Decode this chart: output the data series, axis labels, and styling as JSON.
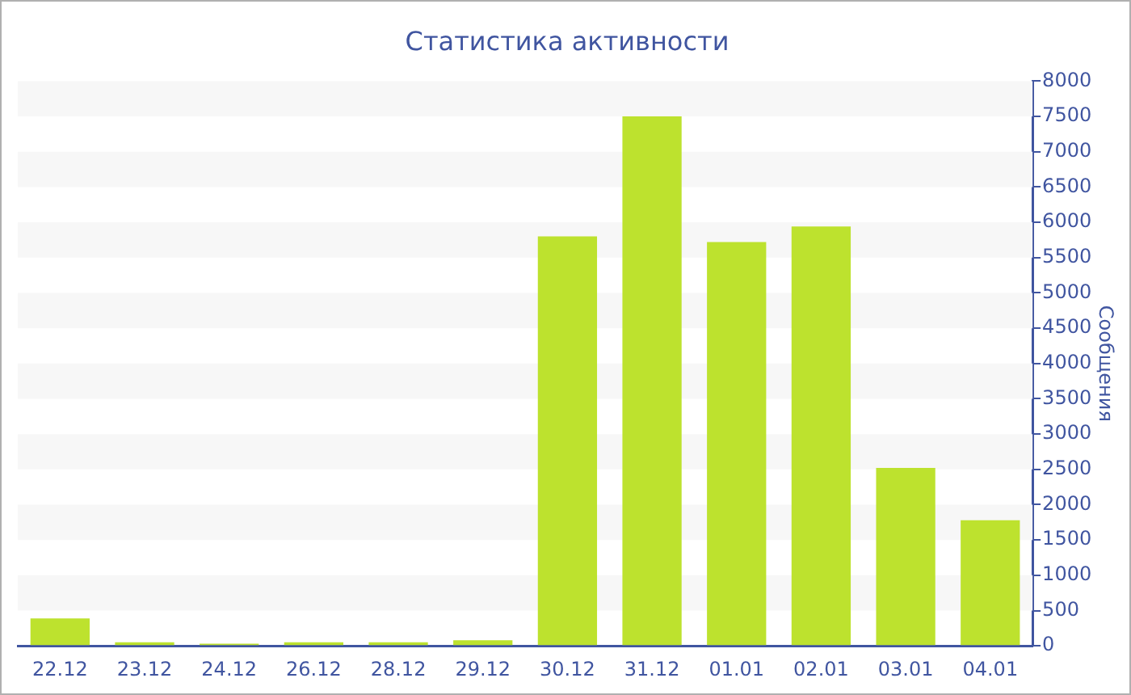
{
  "chart_data": {
    "type": "bar",
    "title": "Статистика активности",
    "ylabel": "Сообщения",
    "categories": [
      "22.12",
      "23.12",
      "24.12",
      "26.12",
      "28.12",
      "29.12",
      "30.12",
      "31.12",
      "01.01",
      "02.01",
      "03.01",
      "04.01"
    ],
    "values": [
      390,
      50,
      30,
      50,
      50,
      80,
      5800,
      7500,
      5720,
      5940,
      2520,
      1780
    ],
    "color": "#bde22e",
    "ylim": [
      0,
      8000
    ],
    "yticks": [
      0,
      500,
      1000,
      1500,
      2000,
      2500,
      3000,
      3500,
      4000,
      4500,
      5000,
      5500,
      6000,
      6500,
      7000,
      7500,
      8000
    ],
    "legend": false
  }
}
